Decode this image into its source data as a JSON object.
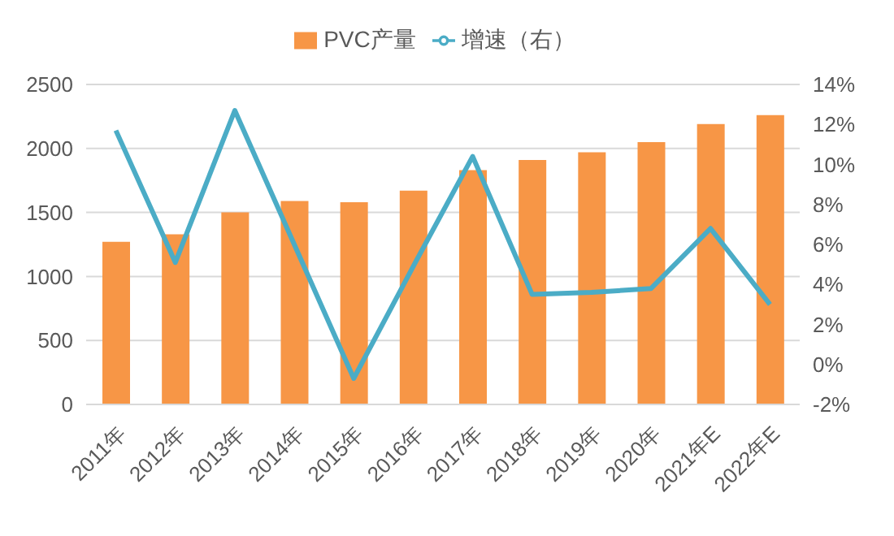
{
  "chart_data": {
    "type": "bar",
    "categories": [
      "2011年",
      "2012年",
      "2013年",
      "2014年",
      "2015年",
      "2016年",
      "2017年",
      "2018年",
      "2019年",
      "2020年",
      "2021年E",
      "2022年E"
    ],
    "series": [
      {
        "name": "PVC产量",
        "color": "#f79646",
        "values": [
          1270,
          1330,
          1500,
          1590,
          1580,
          1670,
          1830,
          1910,
          1970,
          2050,
          2190,
          2260
        ]
      },
      {
        "name": "增速（右）",
        "type": "line",
        "axis": "y2",
        "color": "#4bacc6",
        "values": [
          11.7,
          5.1,
          12.7,
          6.0,
          -0.7,
          4.9,
          10.4,
          3.5,
          3.6,
          3.8,
          6.8,
          3.0
        ]
      }
    ],
    "ylim": [
      0,
      2500
    ],
    "yticks": [
      0,
      500,
      1000,
      1500,
      2000,
      2500
    ],
    "y2lim": [
      -2,
      14
    ],
    "y2ticks": [
      {
        "value": -2,
        "label": "-2%"
      },
      {
        "value": 0,
        "label": "0%"
      },
      {
        "value": 2,
        "label": "2%"
      },
      {
        "value": 4,
        "label": "4%"
      },
      {
        "value": 6,
        "label": "6%"
      },
      {
        "value": 8,
        "label": "8%"
      },
      {
        "value": 10,
        "label": "10%"
      },
      {
        "value": 12,
        "label": "12%"
      },
      {
        "value": 14,
        "label": "14%"
      }
    ],
    "grid": "y",
    "legend": "top",
    "marker": "none"
  }
}
